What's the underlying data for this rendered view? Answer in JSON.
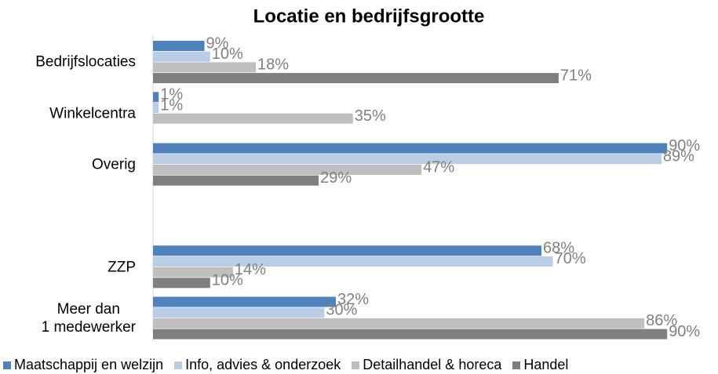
{
  "chart_data": {
    "type": "bar",
    "orientation": "horizontal",
    "title": "Locatie en bedrijfsgrootte",
    "categories": [
      "Bedrijfslocaties",
      "Winkelcentra",
      "Overig",
      null,
      "ZZP",
      "Meer dan\n1 medewerker"
    ],
    "series": [
      {
        "name": "Maatschappij en welzijn",
        "color": "#4f81bd",
        "values": [
          9,
          1,
          90,
          null,
          68,
          32
        ],
        "value_labels": [
          "9%",
          "1%",
          "90%",
          null,
          "68%",
          "32%"
        ]
      },
      {
        "name": "Info, advies & onderzoek",
        "color": "#b9cde5",
        "values": [
          10,
          1,
          89,
          null,
          70,
          30
        ],
        "value_labels": [
          "10%",
          "1%",
          "89%",
          null,
          "70%",
          "30%"
        ]
      },
      {
        "name": "Detailhandel & horeca",
        "color": "#bfbfbf",
        "values": [
          18,
          35,
          47,
          null,
          14,
          86
        ],
        "value_labels": [
          "18%",
          "35%",
          "47%",
          null,
          "14%",
          "86%"
        ]
      },
      {
        "name": "Handel",
        "color": "#7f7f7f",
        "values": [
          71,
          null,
          29,
          null,
          10,
          90
        ],
        "value_labels": [
          "71%",
          null,
          "29%",
          null,
          "10%",
          "90%"
        ]
      }
    ],
    "legend": "bottom"
  }
}
